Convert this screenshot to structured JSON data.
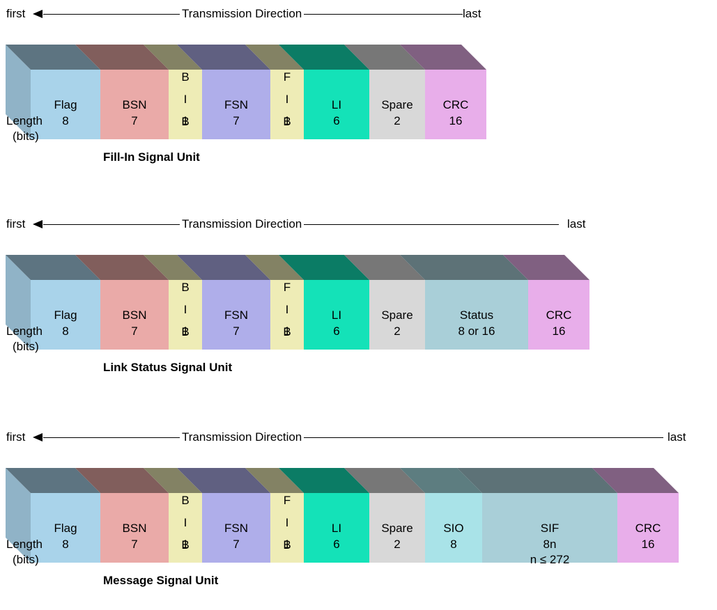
{
  "direction": {
    "first_label": "first",
    "direction_label": "Transmission Direction",
    "last_label": "last"
  },
  "length_label": "Length",
  "bits_label": "(bits)",
  "colors": {
    "Flag": "#a9d3ea",
    "BSN": "#eaaaa8",
    "BIB": "#eeecb6",
    "FSN": "#afaeea",
    "FIB": "#eeecb6",
    "LI": "#14e2b8",
    "Spare": "#d8d8d8",
    "Status": "#a9cfd8",
    "SIO": "#a9e3e8",
    "SIF": "#a9cfd8",
    "CRC": "#e8aeea"
  },
  "units": [
    {
      "caption": "Fill-In Signal Unit",
      "fields": [
        {
          "key": "Flag",
          "label": "Flag",
          "bits": "8"
        },
        {
          "key": "BSN",
          "label": "BSN",
          "bits": "7"
        },
        {
          "key": "BIB",
          "label": "B\nI\nB",
          "bits": "1"
        },
        {
          "key": "FSN",
          "label": "FSN",
          "bits": "7"
        },
        {
          "key": "FIB",
          "label": "F\nI\nB",
          "bits": "1"
        },
        {
          "key": "LI",
          "label": "LI",
          "bits": "6"
        },
        {
          "key": "Spare",
          "label": "Spare",
          "bits": "2"
        },
        {
          "key": "CRC",
          "label": "CRC",
          "bits": "16"
        }
      ]
    },
    {
      "caption": "Link Status Signal Unit",
      "fields": [
        {
          "key": "Flag",
          "label": "Flag",
          "bits": "8"
        },
        {
          "key": "BSN",
          "label": "BSN",
          "bits": "7"
        },
        {
          "key": "BIB",
          "label": "B\nI\nB",
          "bits": "1"
        },
        {
          "key": "FSN",
          "label": "FSN",
          "bits": "7"
        },
        {
          "key": "FIB",
          "label": "F\nI\nB",
          "bits": "1"
        },
        {
          "key": "LI",
          "label": "LI",
          "bits": "6"
        },
        {
          "key": "Spare",
          "label": "Spare",
          "bits": "2"
        },
        {
          "key": "Status",
          "label": "Status",
          "bits": "8 or 16"
        },
        {
          "key": "CRC",
          "label": "CRC",
          "bits": "16"
        }
      ]
    },
    {
      "caption": "Message Signal Unit",
      "fields": [
        {
          "key": "Flag",
          "label": "Flag",
          "bits": "8"
        },
        {
          "key": "BSN",
          "label": "BSN",
          "bits": "7"
        },
        {
          "key": "BIB",
          "label": "B\nI\nB",
          "bits": "1"
        },
        {
          "key": "FSN",
          "label": "FSN",
          "bits": "7"
        },
        {
          "key": "FIB",
          "label": "F\nI\nB",
          "bits": "1"
        },
        {
          "key": "LI",
          "label": "LI",
          "bits": "6"
        },
        {
          "key": "Spare",
          "label": "Spare",
          "bits": "2"
        },
        {
          "key": "SIO",
          "label": "SIO",
          "bits": "8"
        },
        {
          "key": "SIF",
          "label": "SIF",
          "bits": "8n\nn ≤ 272"
        },
        {
          "key": "CRC",
          "label": "CRC",
          "bits": "16"
        }
      ]
    }
  ]
}
